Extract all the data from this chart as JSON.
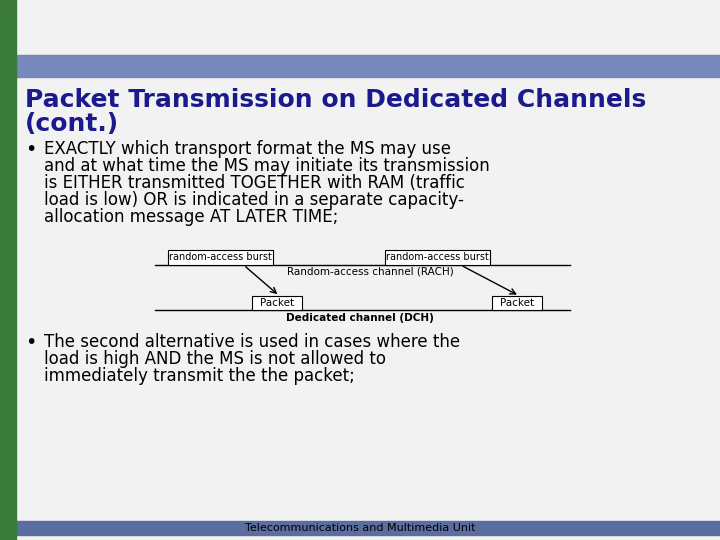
{
  "title_line1": "Packet Transmission on Dedicated Channels",
  "title_line2": "(cont.)",
  "title_color": "#1a1a8c",
  "title_fontsize": 18,
  "header_bar_color": "#6a7fb5",
  "left_bar_color": "#3a7a3a",
  "slide_bg": "#f2f2f2",
  "bullet1_line1": "EXACTLY which transport format the MS may use",
  "bullet1_line2": "and at what time the MS may initiate its transmission",
  "bullet1_line3": "is EITHER transmitted TOGETHER with RAM (traffic",
  "bullet1_line4": "load is low) OR is indicated in a separate capacity-",
  "bullet1_line5": "allocation message AT LATER TIME;",
  "bullet2_line1": "The second alternative is used in cases where the",
  "bullet2_line2": "load is high AND the MS is not allowed to",
  "bullet2_line3": "immediately transmit the the packet;",
  "footer": "Telecommunications and Multimedia Unit",
  "footer_bar_color": "#5a6ea0",
  "diagram_rach_label": "Random-access channel (RACH)",
  "diagram_dch_label": "Dedicated channel (DCH)",
  "diagram_burst_label": "random-access burst",
  "diagram_packet_label": "Packet",
  "text_fontsize": 12,
  "bullet_fontsize": 12
}
